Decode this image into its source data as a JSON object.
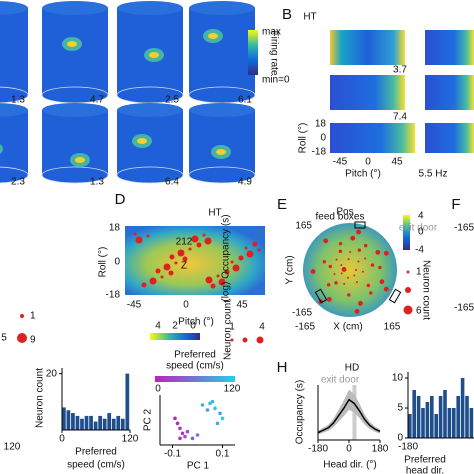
{
  "panel_labels": {
    "b": "B",
    "d": "D",
    "e": "E",
    "f": "F",
    "h": "H"
  },
  "panel_a": {
    "values": [
      1.3,
      4.7,
      2.5,
      6.1,
      2.3,
      1.3,
      6.4,
      4.9
    ],
    "colorbar_max": "max",
    "colorbar_label": "Firing rate",
    "colorbar_min": "min=0"
  },
  "panel_b": {
    "title": "HT",
    "values": [
      3.7,
      7.4
    ],
    "ylabel": "Roll (°)",
    "yticks": [
      18,
      0,
      -18
    ],
    "xticks": [
      -45,
      0,
      45
    ],
    "xlabel": "Pitch (°)",
    "rate": "5.5 Hz"
  },
  "panel_c": {
    "ticks": [
      "212",
      "Z"
    ],
    "colorbar_label": "(log) Occupancy (s)",
    "size_label": "Neuron count",
    "size_ticks": [
      1,
      9
    ],
    "edge_tick": "5"
  },
  "panel_d": {
    "title": "HT",
    "ylabel": "Roll (°)",
    "yticks": [
      18,
      0,
      -18
    ],
    "xticks": [
      -45,
      0,
      45
    ],
    "xlabel": "Pitch (°)",
    "colorbar_ticks": [
      4,
      2,
      0
    ],
    "size_ticks": [
      1,
      4
    ]
  },
  "panel_e": {
    "title": "Pos",
    "feed": "feed boxes",
    "exit": "exit door",
    "ylabel": "Y (cm)",
    "yticks": [
      165,
      -165
    ],
    "xlabel": "X (cm)",
    "xticks": [
      -165,
      165
    ],
    "colorbar_ticks": [
      4,
      0,
      -4
    ],
    "size_label": "Neuron count",
    "size_ticks": [
      1,
      6
    ]
  },
  "panel_f": {
    "yticks": [
      -165,
      -165
    ]
  },
  "panel_g": {
    "edge_tick": 120,
    "ylabel": "Neuron count",
    "histogram": {
      "counts": [
        8,
        7,
        6,
        5,
        4,
        5,
        5,
        3,
        5,
        4,
        6,
        4,
        5,
        4,
        20
      ],
      "xlim": [
        0,
        120
      ],
      "ylim": [
        0,
        22
      ],
      "yticks": [
        20
      ],
      "xticks": [
        0,
        120
      ],
      "color": "#1f4e8c",
      "xlabel1": "Preferred",
      "xlabel2": "speed (cm/s)"
    },
    "scatter": {
      "title1": "Preferred",
      "title2": "speed (cm/s)",
      "colorbar_ticks": [
        0,
        120
      ],
      "xlabel": "PC 1",
      "ylabel": "PC 2",
      "xticks": [
        -0.1,
        0.1
      ],
      "xlim": [
        -0.15,
        0.15
      ],
      "ylim": [
        -0.15,
        0.15
      ],
      "pc1": [
        -0.08,
        -0.07,
        -0.06,
        -0.09,
        -0.05,
        -0.04,
        -0.07,
        0.02,
        0.05,
        0.07,
        0.09,
        0.06,
        0.1,
        0.08,
        0.04,
        0.0,
        -0.02
      ],
      "pc2": [
        -0.02,
        -0.05,
        -0.08,
        0.01,
        -0.1,
        -0.07,
        -0.11,
        0.09,
        0.1,
        0.07,
        0.04,
        0.11,
        0.01,
        -0.02,
        0.06,
        -0.09,
        -0.11
      ],
      "speed": [
        10,
        20,
        15,
        5,
        30,
        25,
        12,
        100,
        110,
        115,
        90,
        105,
        120,
        95,
        80,
        60,
        40
      ]
    }
  },
  "panel_h": {
    "title": "HD",
    "exit": "exit door",
    "ylabel": "Occupancy (s)",
    "xlabel": "Head dir. (°)",
    "xticks": [
      -180,
      0,
      180
    ],
    "xlim": [
      -180,
      180
    ],
    "ylim": [
      0,
      450
    ],
    "x": [
      -180,
      -150,
      -120,
      -90,
      -60,
      -30,
      0,
      30,
      60,
      90,
      120,
      150,
      180
    ],
    "values": [
      60,
      80,
      100,
      140,
      200,
      260,
      330,
      300,
      240,
      170,
      120,
      90,
      70
    ],
    "histogram": {
      "counts": [
        4,
        8,
        7,
        5,
        6,
        7,
        4,
        7,
        8,
        5,
        5,
        7,
        10,
        7,
        5
      ],
      "ylim": [
        0,
        11
      ],
      "yticks": [
        10,
        5,
        0
      ],
      "xticks": [
        -180
      ],
      "color": "#1f4e8c",
      "xlabel1": "Preferred",
      "xlabel2": "head dir."
    }
  }
}
